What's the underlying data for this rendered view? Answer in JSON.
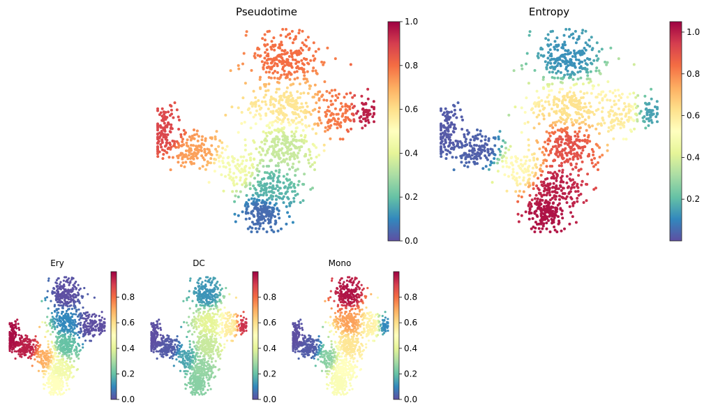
{
  "colormap": {
    "name": "Spectral_r",
    "stops": [
      "#5e4fa2",
      "#3288bd",
      "#66c2a5",
      "#abdda4",
      "#e6f598",
      "#ffffbf",
      "#fee08b",
      "#fdae61",
      "#f46d43",
      "#d53e4f",
      "#9e0142"
    ]
  },
  "chart_data": [
    {
      "type": "scatter",
      "title": "Pseudotime",
      "colorbar": {
        "min": 0.0,
        "max": 1.0,
        "ticks": [
          0.0,
          0.2,
          0.4,
          0.6,
          0.8,
          1.0
        ],
        "tick_labels": [
          "0.0",
          "0.2",
          "0.4",
          "0.6",
          "0.8",
          "1.0"
        ]
      },
      "axes_visible": false,
      "color_by_region": {
        "ery_branch_tip": 0.88,
        "ery_branch_mid": 0.72,
        "junction": 0.45,
        "stem_bottom": 0.05,
        "stem_center": 0.18,
        "center": 0.35,
        "upper_middle": 0.58,
        "top": 0.8,
        "right_arm": 0.78,
        "dc_tip": 0.95
      }
    },
    {
      "type": "scatter",
      "title": "Entropy",
      "colorbar": {
        "min": 0.0,
        "max": 1.05,
        "ticks": [
          0.2,
          0.4,
          0.6,
          0.8,
          1.0
        ],
        "tick_labels": [
          "0.2",
          "0.4",
          "0.6",
          "0.8",
          "1.0"
        ]
      },
      "axes_visible": false,
      "color_by_region": {
        "ery_branch_tip": 0.02,
        "ery_branch_mid": 0.03,
        "junction": 0.55,
        "stem_bottom": 1.02,
        "stem_center": 1.0,
        "center": 0.9,
        "upper_middle": 0.62,
        "top": 0.12,
        "right_arm": 0.6,
        "dc_tip": 0.15
      }
    },
    {
      "type": "scatter",
      "title": "Ery",
      "colorbar": {
        "min": 0.0,
        "max": 1.0,
        "ticks": [
          0.0,
          0.2,
          0.4,
          0.6,
          0.8
        ],
        "tick_labels": [
          "0.0",
          "0.2",
          "0.4",
          "0.6",
          "0.8"
        ]
      },
      "axes_visible": false,
      "color_by_region": {
        "ery_branch_tip": 0.98,
        "ery_branch_mid": 0.95,
        "junction": 0.7,
        "stem_bottom": 0.5,
        "stem_center": 0.45,
        "center": 0.2,
        "upper_middle": 0.1,
        "top": 0.0,
        "right_arm": 0.0,
        "dc_tip": 0.0
      }
    },
    {
      "type": "scatter",
      "title": "DC",
      "colorbar": {
        "min": 0.0,
        "max": 1.0,
        "ticks": [
          0.0,
          0.2,
          0.4,
          0.6,
          0.8
        ],
        "tick_labels": [
          "0.0",
          "0.2",
          "0.4",
          "0.6",
          "0.8"
        ]
      },
      "axes_visible": false,
      "color_by_region": {
        "ery_branch_tip": 0.0,
        "ery_branch_mid": 0.02,
        "junction": 0.15,
        "stem_bottom": 0.25,
        "stem_center": 0.27,
        "center": 0.35,
        "upper_middle": 0.4,
        "top": 0.12,
        "right_arm": 0.55,
        "dc_tip": 0.92
      }
    },
    {
      "type": "scatter",
      "title": "Mono",
      "colorbar": {
        "min": 0.0,
        "max": 1.0,
        "ticks": [
          0.0,
          0.2,
          0.4,
          0.6,
          0.8
        ],
        "tick_labels": [
          "0.0",
          "0.2",
          "0.4",
          "0.6",
          "0.8"
        ]
      },
      "axes_visible": false,
      "color_by_region": {
        "ery_branch_tip": 0.0,
        "ery_branch_mid": 0.02,
        "junction": 0.25,
        "stem_bottom": 0.48,
        "stem_center": 0.5,
        "center": 0.58,
        "upper_middle": 0.72,
        "top": 0.97,
        "right_arm": 0.55,
        "dc_tip": 0.1
      }
    }
  ]
}
